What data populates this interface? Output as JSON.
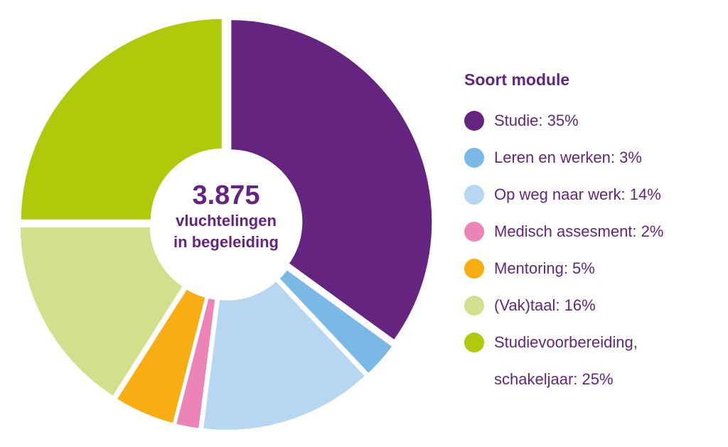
{
  "chart_data": {
    "type": "pie",
    "center": {
      "value": "3.875",
      "line1": "vluchtelingen",
      "line2": "in begeleiding"
    },
    "legend_title": "Soort module",
    "legend_placement": "right",
    "slices": [
      {
        "label": "Studie: 35%",
        "name": "Studie",
        "value": 35,
        "color": "#64247f"
      },
      {
        "label": "Leren en werken: 3%",
        "name": "Leren en werken",
        "value": 3,
        "color": "#7ab8e6"
      },
      {
        "label": "Op weg naar werk: 14%",
        "name": "Op weg naar werk",
        "value": 14,
        "color": "#b7d6f1"
      },
      {
        "label": "Medisch assesment: 2%",
        "name": "Medisch assesment",
        "value": 2,
        "color": "#ec84b7"
      },
      {
        "label": "Mentoring: 5%",
        "name": "Mentoring",
        "value": 5,
        "color": "#f8ad12"
      },
      {
        "label": "(Vak)taal: 16%",
        "name": "(Vak)taal",
        "value": 16,
        "color": "#d2e08d"
      },
      {
        "label_lines": [
          "Studievoorbereiding,",
          "schakeljaar: 25%"
        ],
        "name": "Studievoorbereiding, schakeljaar",
        "value": 25,
        "color": "#afca0b"
      }
    ]
  }
}
